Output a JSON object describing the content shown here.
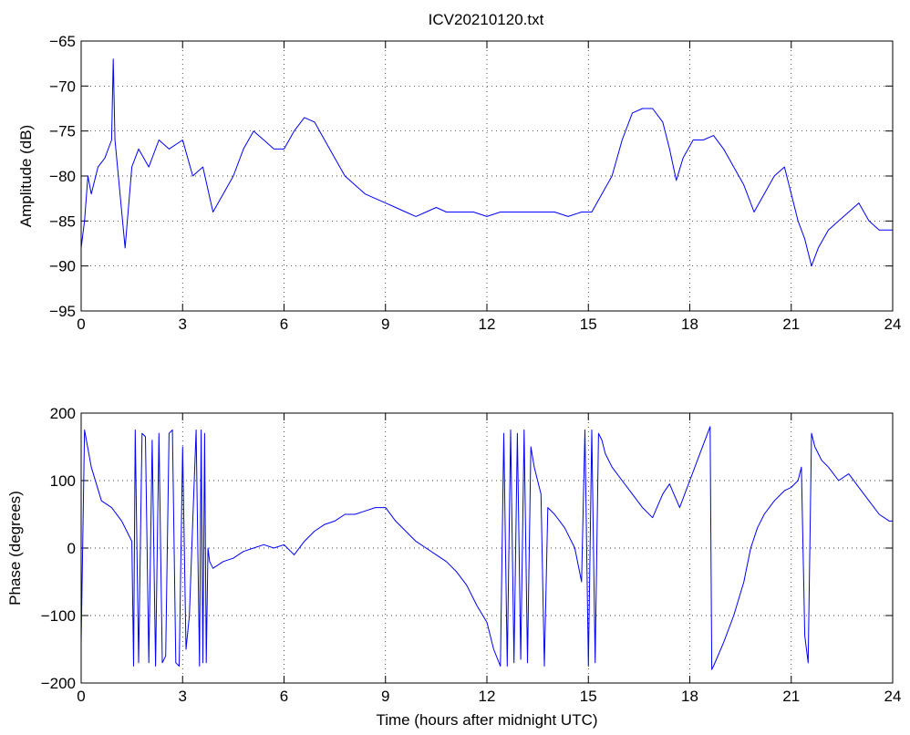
{
  "figure": {
    "title": "ICV20210120.txt"
  },
  "colors": {
    "series": "#0000ff",
    "axes": "#000000",
    "background": "#ffffff"
  },
  "chart_data": [
    {
      "type": "line",
      "title": "ICV20210120.txt",
      "xlabel": "",
      "ylabel": "Amplitude (dB)",
      "xlim": [
        0,
        24
      ],
      "ylim": [
        -95,
        -65
      ],
      "xticks": [
        0,
        3,
        6,
        9,
        12,
        15,
        18,
        21,
        24
      ],
      "yticks": [
        -95,
        -90,
        -85,
        -80,
        -75,
        -70,
        -65
      ],
      "grid": true,
      "series": [
        {
          "x": [
            0,
            0.1,
            0.2,
            0.3,
            0.5,
            0.7,
            0.9,
            0.95,
            1.0,
            1.1,
            1.2,
            1.3,
            1.5,
            1.7,
            2.0,
            2.3,
            2.6,
            3.0,
            3.3,
            3.6,
            3.9,
            4.2,
            4.5,
            4.8,
            5.1,
            5.4,
            5.7,
            6.0,
            6.3,
            6.6,
            6.9,
            7.2,
            7.5,
            7.8,
            8.1,
            8.4,
            8.7,
            9.0,
            9.3,
            9.6,
            9.9,
            10.2,
            10.5,
            10.8,
            11.2,
            11.6,
            12.0,
            12.4,
            12.8,
            13.2,
            13.6,
            14.0,
            14.4,
            14.8,
            15.1,
            15.4,
            15.7,
            16.0,
            16.3,
            16.6,
            16.9,
            17.2,
            17.4,
            17.6,
            17.8,
            18.1,
            18.4,
            18.7,
            19.0,
            19.3,
            19.6,
            19.9,
            20.2,
            20.5,
            20.8,
            21.0,
            21.2,
            21.4,
            21.6,
            21.8,
            22.1,
            22.4,
            22.7,
            23.0,
            23.3,
            23.6,
            23.9,
            24.0
          ],
          "y": [
            -88,
            -85,
            -80,
            -82,
            -79,
            -78,
            -76,
            -67,
            -76,
            -80,
            -84,
            -88,
            -79,
            -77,
            -79,
            -76,
            -77,
            -76,
            -80,
            -79,
            -84,
            -82,
            -80,
            -77,
            -75,
            -76,
            -77,
            -77,
            -75,
            -73.5,
            -74,
            -76,
            -78,
            -80,
            -81,
            -82,
            -82.5,
            -83,
            -83.5,
            -84,
            -84.5,
            -84,
            -83.5,
            -84,
            -84,
            -84,
            -84.5,
            -84,
            -84,
            -84,
            -84,
            -84,
            -84.5,
            -84,
            -84,
            -82,
            -80,
            -76,
            -73,
            -72.5,
            -72.5,
            -74,
            -77,
            -80.5,
            -78,
            -76,
            -76,
            -75.5,
            -77,
            -79,
            -81,
            -84,
            -82,
            -80,
            -79,
            -82,
            -85,
            -87,
            -90,
            -88,
            -86,
            -85,
            -84,
            -83,
            -85,
            -86,
            -86,
            -86
          ]
        }
      ]
    },
    {
      "type": "line",
      "title": "",
      "xlabel": "Time (hours after midnight UTC)",
      "ylabel": "Phase (degrees)",
      "xlim": [
        0,
        24
      ],
      "ylim": [
        -200,
        200
      ],
      "xticks": [
        0,
        3,
        6,
        9,
        12,
        15,
        18,
        21,
        24
      ],
      "yticks": [
        -200,
        -100,
        0,
        100,
        200
      ],
      "grid": true,
      "series": [
        {
          "x": [
            0,
            0.1,
            0.3,
            0.6,
            0.9,
            1.2,
            1.5,
            1.55,
            1.6,
            1.7,
            1.8,
            1.9,
            2.0,
            2.1,
            2.2,
            2.3,
            2.4,
            2.5,
            2.6,
            2.7,
            2.8,
            2.9,
            3.0,
            3.1,
            3.2,
            3.3,
            3.4,
            3.5,
            3.55,
            3.6,
            3.65,
            3.7,
            3.75,
            3.8,
            3.9,
            4.2,
            4.5,
            4.8,
            5.1,
            5.4,
            5.7,
            6.0,
            6.3,
            6.6,
            6.9,
            7.2,
            7.5,
            7.8,
            8.1,
            8.4,
            8.7,
            9.0,
            9.3,
            9.6,
            9.9,
            10.2,
            10.5,
            10.8,
            11.1,
            11.4,
            11.7,
            12.0,
            12.2,
            12.4,
            12.5,
            12.6,
            12.7,
            12.8,
            12.9,
            13.0,
            13.1,
            13.2,
            13.3,
            13.4,
            13.5,
            13.6,
            13.7,
            13.8,
            14.0,
            14.3,
            14.6,
            14.8,
            14.9,
            15.0,
            15.1,
            15.2,
            15.3,
            15.4,
            15.5,
            15.7,
            16.0,
            16.3,
            16.6,
            16.9,
            17.2,
            17.4,
            17.7,
            18.0,
            18.3,
            18.6,
            18.65,
            18.7,
            19.0,
            19.3,
            19.6,
            19.8,
            20.0,
            20.2,
            20.5,
            20.8,
            21.0,
            21.2,
            21.3,
            21.4,
            21.5,
            21.6,
            21.7,
            21.8,
            21.9,
            22.1,
            22.4,
            22.7,
            23.0,
            23.3,
            23.6,
            23.9,
            24.0
          ],
          "y": [
            -140,
            175,
            120,
            70,
            60,
            40,
            10,
            -175,
            175,
            -170,
            170,
            165,
            -170,
            160,
            -175,
            170,
            -170,
            -160,
            170,
            175,
            -170,
            -175,
            150,
            -150,
            -100,
            40,
            175,
            -175,
            175,
            -170,
            170,
            -170,
            0,
            -20,
            -30,
            -20,
            -15,
            -5,
            0,
            5,
            0,
            5,
            -10,
            10,
            25,
            35,
            40,
            50,
            50,
            55,
            60,
            60,
            40,
            25,
            10,
            0,
            -10,
            -20,
            -35,
            -55,
            -85,
            -110,
            -150,
            -175,
            170,
            -175,
            175,
            -170,
            170,
            -165,
            175,
            -170,
            150,
            120,
            100,
            80,
            -175,
            60,
            50,
            30,
            0,
            -50,
            175,
            -175,
            175,
            -170,
            170,
            160,
            140,
            120,
            100,
            80,
            60,
            45,
            80,
            95,
            60,
            100,
            140,
            180,
            -180,
            -175,
            -140,
            -100,
            -50,
            0,
            30,
            50,
            70,
            85,
            90,
            100,
            120,
            -130,
            -170,
            170,
            150,
            140,
            130,
            120,
            100,
            110,
            90,
            70,
            50,
            40,
            40
          ]
        }
      ]
    }
  ]
}
